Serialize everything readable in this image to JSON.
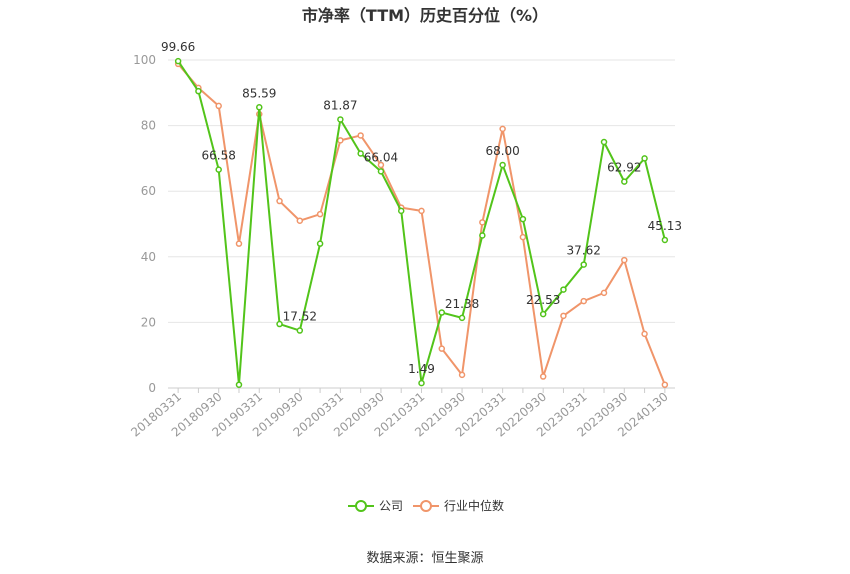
{
  "chart_data": {
    "type": "line",
    "title": "市净率（TTM）历史百分位（%）",
    "source": "数据来源：恒生聚源",
    "ylim": [
      0,
      100
    ],
    "yticks": [
      0,
      20,
      40,
      60,
      80,
      100
    ],
    "grid": true,
    "legend_position": "bottom-center",
    "x_labels_shown": [
      "20180331",
      "20180930",
      "20190331",
      "20190930",
      "20200331",
      "20200930",
      "20210331",
      "20210930",
      "20220331",
      "20220930",
      "20230331",
      "20230930",
      "20240130"
    ],
    "series": [
      {
        "name": "公司",
        "color": "#52c41a",
        "values": [
          99.66,
          90.5,
          66.58,
          1.0,
          85.59,
          19.5,
          17.52,
          44.0,
          81.87,
          71.5,
          66.04,
          54.0,
          1.49,
          23.0,
          21.38,
          46.5,
          68.0,
          51.5,
          22.53,
          30.0,
          37.62,
          75.0,
          62.92,
          70.0,
          45.13
        ]
      },
      {
        "name": "行业中位数",
        "color": "#f0956a",
        "values": [
          98.8,
          91.5,
          86.0,
          44.0,
          83.5,
          57.0,
          51.0,
          53.0,
          75.5,
          77.0,
          68.0,
          55.0,
          54.0,
          12.0,
          4.0,
          50.5,
          79.0,
          46.0,
          3.5,
          22.0,
          26.5,
          29.0,
          39.0,
          16.5,
          1.0
        ]
      }
    ],
    "data_labels": [
      {
        "index": 0,
        "text": "99.66"
      },
      {
        "index": 2,
        "text": "66.58"
      },
      {
        "index": 4,
        "text": "85.59"
      },
      {
        "index": 6,
        "text": "17.52"
      },
      {
        "index": 8,
        "text": "81.87"
      },
      {
        "index": 10,
        "text": "66.04"
      },
      {
        "index": 12,
        "text": "1.49"
      },
      {
        "index": 14,
        "text": "21.38"
      },
      {
        "index": 16,
        "text": "68.00"
      },
      {
        "index": 18,
        "text": "22.53"
      },
      {
        "index": 20,
        "text": "37.62"
      },
      {
        "index": 22,
        "text": "62.92"
      },
      {
        "index": 24,
        "text": "45.13"
      }
    ]
  }
}
